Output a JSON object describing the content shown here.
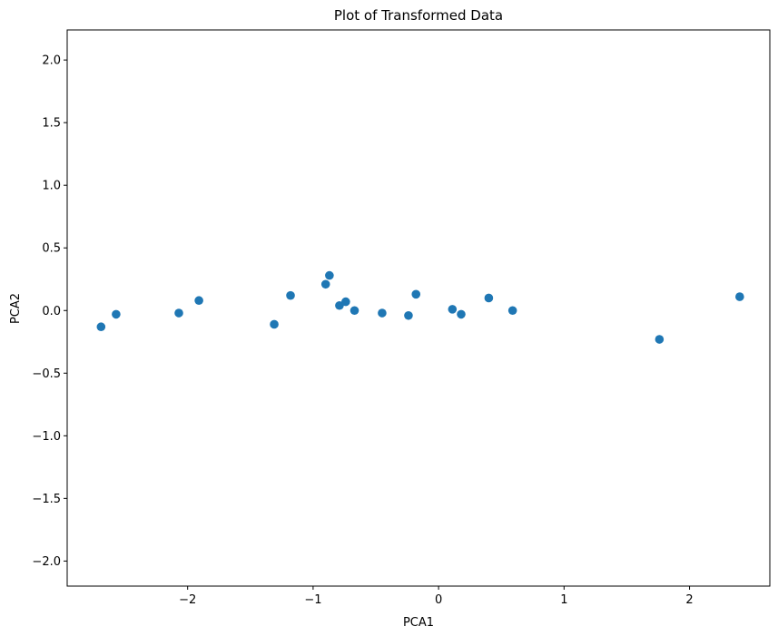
{
  "chart_data": {
    "type": "scatter",
    "title": "Plot of Transformed Data",
    "xlabel": "PCA1",
    "ylabel": "PCA2",
    "xlim": [
      -2.96,
      2.64
    ],
    "ylim": [
      -2.2,
      2.24
    ],
    "xticks": [
      -2,
      -1,
      0,
      1,
      2
    ],
    "xtick_labels": [
      "−2",
      "−1",
      "0",
      "1",
      "2"
    ],
    "yticks": [
      -2.0,
      -1.5,
      -1.0,
      -0.5,
      0.0,
      0.5,
      1.0,
      1.5,
      2.0
    ],
    "ytick_labels": [
      "−2.0",
      "−1.5",
      "−1.0",
      "−0.5",
      "0.0",
      "0.5",
      "1.0",
      "1.5",
      "2.0"
    ],
    "grid": false,
    "color": "#1f77b4",
    "points": [
      {
        "x": -2.69,
        "y": -0.13
      },
      {
        "x": -2.57,
        "y": -0.03
      },
      {
        "x": -2.07,
        "y": -0.02
      },
      {
        "x": -1.91,
        "y": 0.08
      },
      {
        "x": -1.31,
        "y": -0.11
      },
      {
        "x": -1.18,
        "y": 0.12
      },
      {
        "x": -0.9,
        "y": 0.21
      },
      {
        "x": -0.87,
        "y": 0.28
      },
      {
        "x": -0.79,
        "y": 0.04
      },
      {
        "x": -0.74,
        "y": 0.07
      },
      {
        "x": -0.67,
        "y": 0.0
      },
      {
        "x": -0.45,
        "y": -0.02
      },
      {
        "x": -0.24,
        "y": -0.04
      },
      {
        "x": -0.18,
        "y": 0.13
      },
      {
        "x": 0.11,
        "y": 0.01
      },
      {
        "x": 0.18,
        "y": -0.03
      },
      {
        "x": 0.4,
        "y": 0.1
      },
      {
        "x": 0.59,
        "y": 0.0
      },
      {
        "x": 1.76,
        "y": -0.23
      },
      {
        "x": 2.4,
        "y": 0.11
      }
    ]
  }
}
